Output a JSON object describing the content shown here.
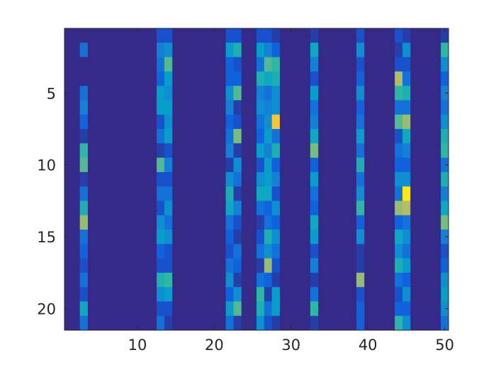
{
  "chart_data": {
    "type": "heatmap",
    "title": "",
    "xlabel": "",
    "ylabel": "",
    "n_cols": 50,
    "n_rows": 21,
    "xlim": [
      0.5,
      50.5
    ],
    "ylim": [
      0.5,
      21.5
    ],
    "y_reversed": true,
    "xticks": [
      10,
      20,
      30,
      40,
      50
    ],
    "yticks": [
      5,
      10,
      15,
      20
    ],
    "xtick_labels": [
      "10",
      "20",
      "30",
      "40",
      "50"
    ],
    "ytick_labels": [
      "5",
      "10",
      "15",
      "20"
    ],
    "colormap": "parula",
    "colormap_stops": [
      "#352a87",
      "#0f5cdd",
      "#1481d6",
      "#06a4ca",
      "#2eb7a4",
      "#87bf77",
      "#d1bb59",
      "#fec832",
      "#f9fb0e"
    ],
    "clim": [
      0,
      1
    ],
    "background_value": 0,
    "grid": false,
    "active_columns": {
      "3": [
        0,
        0.2,
        0,
        0,
        0.2,
        0.25,
        0.15,
        0.05,
        0.5,
        0.55,
        0.05,
        0.2,
        0.45,
        0.65,
        0.2,
        0.15,
        0.1,
        0.2,
        0.1,
        0.4,
        0.2
      ],
      "13": [
        0.1,
        0.25,
        0.2,
        0.15,
        0.35,
        0.35,
        0.1,
        0.2,
        0.05,
        0.55,
        0.1,
        0.2,
        0.1,
        0.3,
        0.35,
        0.15,
        0.1,
        0.45,
        0.3,
        0.1,
        0.2
      ],
      "14": [
        0.1,
        0.3,
        0.55,
        0.35,
        0.3,
        0.35,
        0.3,
        0.35,
        0.1,
        0.25,
        0.1,
        0.2,
        0.3,
        0.2,
        0.3,
        0.1,
        0.1,
        0.5,
        0.35,
        0.1,
        0.05
      ],
      "22": [
        0.1,
        0.35,
        0.15,
        0.15,
        0.3,
        0.25,
        0.15,
        0.2,
        0.25,
        0.05,
        0.3,
        0.45,
        0.4,
        0.2,
        0.15,
        0.1,
        0.2,
        0.3,
        0.15,
        0.35,
        0.2
      ],
      "23": [
        0.1,
        0.45,
        0.1,
        0.15,
        0.55,
        0.05,
        0.1,
        0.6,
        0.05,
        0.3,
        0.2,
        0.05,
        0.25,
        0.1,
        0.05,
        0.2,
        0.15,
        0.05,
        0.3,
        0.55,
        0.05
      ],
      "26": [
        0.1,
        0.35,
        0.2,
        0.45,
        0.25,
        0.3,
        0.2,
        0.15,
        0.35,
        0.1,
        0.3,
        0.4,
        0.2,
        0.05,
        0.1,
        0.2,
        0.05,
        0.2,
        0.5,
        0.45,
        0.3
      ],
      "27": [
        0.1,
        0.25,
        0.55,
        0.4,
        0.2,
        0.25,
        0.3,
        0.35,
        0.25,
        0.35,
        0.35,
        0.4,
        0.15,
        0.2,
        0.45,
        0.3,
        0.65,
        0.15,
        0.05,
        0.2,
        0.1
      ],
      "28": [
        0.05,
        0.15,
        0.5,
        0.45,
        0.3,
        0.3,
        0.85,
        0.2,
        0.45,
        0.15,
        0.25,
        0.1,
        0.3,
        0.15,
        0.3,
        0.2,
        0.1,
        0.05,
        0.35,
        0.35,
        0.05
      ],
      "33": [
        0.05,
        0.4,
        0.25,
        0.1,
        0.35,
        0.2,
        0.25,
        0.4,
        0.6,
        0.15,
        0.35,
        0.2,
        0.15,
        0.4,
        0.35,
        0.1,
        0.25,
        0.05,
        0.2,
        0.5,
        0.05
      ],
      "39": [
        0.1,
        0.3,
        0.1,
        0.15,
        0.3,
        0.15,
        0.2,
        0.35,
        0.2,
        0.45,
        0.2,
        0.3,
        0.5,
        0.15,
        0.3,
        0.05,
        0.05,
        0.65,
        0.1,
        0.15,
        0.15
      ],
      "44": [
        0.1,
        0.05,
        0.1,
        0.7,
        0.5,
        0.2,
        0.55,
        0.1,
        0.2,
        0.15,
        0.3,
        0.2,
        0.65,
        0.15,
        0.4,
        0.3,
        0.45,
        0.2,
        0.1,
        0.15,
        0.5
      ],
      "45": [
        0.05,
        0.3,
        0.1,
        0.2,
        0.45,
        0.2,
        0.65,
        0.4,
        0.25,
        0.15,
        0.3,
        0.95,
        0.7,
        0.2,
        0.3,
        0.2,
        0.35,
        0.15,
        0.3,
        0.15,
        0.3
      ],
      "50": [
        0.05,
        0.5,
        0.3,
        0.15,
        0.25,
        0.2,
        0.3,
        0.45,
        0.5,
        0.2,
        0.45,
        0.25,
        0.4,
        0.6,
        0.25,
        0.1,
        0.15,
        0.3,
        0.35,
        0.3,
        0.2
      ]
    }
  }
}
